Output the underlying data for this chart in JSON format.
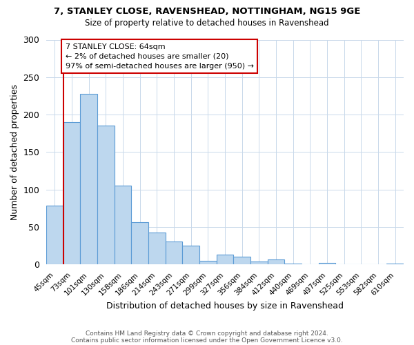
{
  "title1": "7, STANLEY CLOSE, RAVENSHEAD, NOTTINGHAM, NG15 9GE",
  "title2": "Size of property relative to detached houses in Ravenshead",
  "xlabel": "Distribution of detached houses by size in Ravenshead",
  "ylabel": "Number of detached properties",
  "footnote1": "Contains HM Land Registry data © Crown copyright and database right 2024.",
  "footnote2": "Contains public sector information licensed under the Open Government Licence v3.0.",
  "bin_labels": [
    "45sqm",
    "73sqm",
    "101sqm",
    "130sqm",
    "158sqm",
    "186sqm",
    "214sqm",
    "243sqm",
    "271sqm",
    "299sqm",
    "327sqm",
    "356sqm",
    "384sqm",
    "412sqm",
    "440sqm",
    "469sqm",
    "497sqm",
    "525sqm",
    "553sqm",
    "582sqm",
    "610sqm"
  ],
  "bar_heights": [
    79,
    190,
    228,
    185,
    105,
    57,
    43,
    31,
    25,
    5,
    13,
    11,
    4,
    7,
    1,
    0,
    2,
    0,
    0,
    0,
    1
  ],
  "bar_color": "#bdd7ee",
  "bar_edge_color": "#5b9bd5",
  "annotation_title": "7 STANLEY CLOSE: 64sqm",
  "annotation_line1": "← 2% of detached houses are smaller (20)",
  "annotation_line2": "97% of semi-detached houses are larger (950) →",
  "annotation_box_color": "#ffffff",
  "annotation_box_edge_color": "#cc0000",
  "vline_color": "#cc0000",
  "ylim": [
    0,
    300
  ],
  "yticks": [
    0,
    50,
    100,
    150,
    200,
    250,
    300
  ],
  "background_color": "#ffffff",
  "grid_color": "#c8d8ea"
}
